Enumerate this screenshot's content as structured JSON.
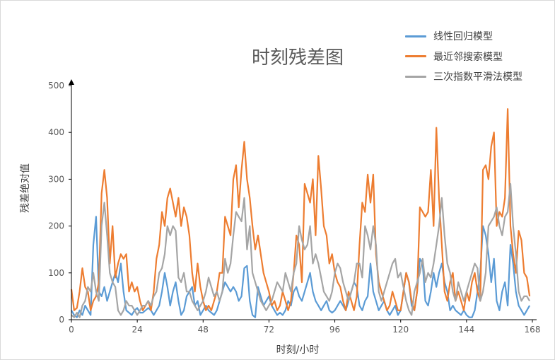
{
  "chart_data": {
    "type": "line",
    "title": "时刻残差图",
    "xlabel": "时刻/小时",
    "ylabel": "残差绝对值",
    "xlim": [
      0,
      168
    ],
    "ylim": [
      0,
      500
    ],
    "xticks": [
      0,
      24,
      48,
      72,
      96,
      120,
      144,
      168
    ],
    "yticks": [
      0,
      100,
      200,
      300,
      400,
      500
    ],
    "grid": false,
    "legend_position": "top-right",
    "series": [
      {
        "name": "线性回归模型",
        "color": "#5b9bd5",
        "values": [
          20,
          10,
          5,
          20,
          10,
          30,
          20,
          10,
          160,
          220,
          60,
          50,
          70,
          40,
          60,
          80,
          100,
          80,
          120,
          60,
          20,
          15,
          10,
          20,
          25,
          15,
          15,
          20,
          25,
          20,
          10,
          20,
          30,
          60,
          100,
          70,
          30,
          60,
          80,
          40,
          10,
          20,
          50,
          60,
          70,
          30,
          40,
          10,
          20,
          30,
          20,
          15,
          10,
          20,
          40,
          60,
          80,
          70,
          60,
          70,
          60,
          40,
          50,
          110,
          115,
          40,
          10,
          5,
          70,
          50,
          30,
          40,
          50,
          30,
          20,
          10,
          15,
          10,
          20,
          40,
          30,
          60,
          70,
          50,
          40,
          60,
          80,
          100,
          60,
          40,
          30,
          20,
          30,
          40,
          20,
          15,
          20,
          30,
          40,
          30,
          20,
          40,
          60,
          80,
          70,
          30,
          20,
          40,
          50,
          120,
          60,
          40,
          20,
          30,
          40,
          20,
          10,
          20,
          30,
          10,
          20,
          60,
          100,
          80,
          30,
          20,
          60,
          130,
          120,
          40,
          30,
          60,
          100,
          70,
          100,
          120,
          80,
          60,
          20,
          30,
          20,
          15,
          10,
          20,
          10,
          5,
          5,
          20,
          60,
          100,
          200,
          180,
          140,
          80,
          130,
          40,
          20,
          60,
          80,
          30,
          160,
          120,
          60,
          30,
          20,
          10,
          20,
          30
        ]
      },
      {
        "name": "最近邻搜索模型",
        "color": "#ed7d31",
        "values": [
          65,
          20,
          25,
          60,
          110,
          70,
          60,
          20,
          40,
          50,
          80,
          270,
          320,
          260,
          120,
          200,
          90,
          120,
          140,
          130,
          140,
          60,
          80,
          60,
          70,
          40,
          20,
          30,
          40,
          20,
          60,
          130,
          160,
          230,
          200,
          260,
          280,
          250,
          220,
          260,
          200,
          240,
          220,
          180,
          100,
          60,
          120,
          70,
          40,
          20,
          30,
          20,
          40,
          60,
          100,
          100,
          220,
          200,
          180,
          300,
          330,
          240,
          320,
          380,
          300,
          260,
          200,
          150,
          180,
          140,
          100,
          80,
          60,
          30,
          40,
          20,
          30,
          60,
          40,
          20,
          40,
          100,
          180,
          160,
          80,
          290,
          270,
          250,
          300,
          180,
          350,
          280,
          200,
          180,
          120,
          140,
          100,
          80,
          70,
          40,
          20,
          60,
          40,
          20,
          50,
          160,
          250,
          230,
          310,
          250,
          310,
          140,
          80,
          60,
          40,
          20,
          30,
          60,
          40,
          20,
          20,
          60,
          100,
          80,
          40,
          20,
          60,
          240,
          230,
          220,
          230,
          320,
          200,
          410,
          260,
          160,
          60,
          40,
          80,
          100,
          40,
          60,
          40,
          20,
          60,
          40,
          80,
          100,
          60,
          40,
          320,
          330,
          300,
          370,
          400,
          200,
          230,
          220,
          260,
          450,
          200,
          140,
          100,
          190,
          170,
          100,
          90,
          50
        ]
      },
      {
        "name": "三次指数平滑法模型",
        "color": "#a5a5a5",
        "values": [
          10,
          5,
          15,
          5,
          30,
          40,
          70,
          60,
          100,
          60,
          40,
          200,
          250,
          180,
          100,
          80,
          70,
          20,
          10,
          20,
          40,
          30,
          30,
          20,
          10,
          20,
          30,
          30,
          40,
          30,
          50,
          60,
          100,
          110,
          140,
          200,
          180,
          200,
          190,
          90,
          80,
          100,
          60,
          60,
          40,
          30,
          20,
          30,
          40,
          60,
          90,
          70,
          50,
          60,
          40,
          60,
          130,
          100,
          120,
          180,
          230,
          220,
          210,
          260,
          150,
          200,
          100,
          80,
          60,
          40,
          30,
          20,
          30,
          40,
          60,
          80,
          70,
          60,
          100,
          80,
          60,
          100,
          120,
          200,
          170,
          150,
          160,
          200,
          120,
          140,
          120,
          90,
          60,
          50,
          40,
          60,
          100,
          120,
          110,
          80,
          60,
          40,
          60,
          80,
          120,
          120,
          90,
          200,
          180,
          150,
          200,
          160,
          60,
          40,
          60,
          80,
          100,
          120,
          130,
          90,
          100,
          70,
          40,
          20,
          10,
          60,
          80,
          100,
          130,
          80,
          100,
          90,
          120,
          160,
          200,
          260,
          180,
          120,
          100,
          60,
          40,
          80,
          60,
          40,
          60,
          80,
          100,
          120,
          110,
          40,
          60,
          100,
          200,
          210,
          220,
          240,
          200,
          180,
          220,
          230,
          290,
          200,
          140,
          60,
          40,
          50,
          50,
          40
        ]
      }
    ]
  }
}
